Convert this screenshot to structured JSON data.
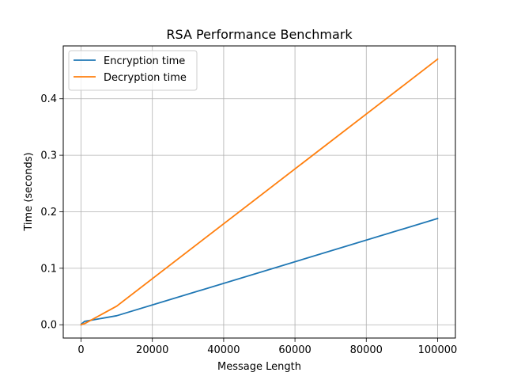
{
  "chart_data": {
    "type": "line",
    "title": "RSA Performance Benchmark",
    "xlabel": "Message Length",
    "ylabel": "Time (seconds)",
    "xlim": [
      -5000,
      105000
    ],
    "ylim": [
      -0.0235,
      0.4935
    ],
    "x_ticks": [
      0,
      20000,
      40000,
      60000,
      80000,
      100000
    ],
    "x_tick_labels": [
      "0",
      "20000",
      "40000",
      "60000",
      "80000",
      "100000"
    ],
    "y_ticks": [
      0.0,
      0.1,
      0.2,
      0.3,
      0.4
    ],
    "y_tick_labels": [
      "0.0",
      "0.1",
      "0.2",
      "0.3",
      "0.4"
    ],
    "grid": true,
    "legend_position": "top-left",
    "series": [
      {
        "name": "Encryption time",
        "color": "#1f77b4",
        "x": [
          10,
          100,
          1000,
          10000,
          100000
        ],
        "y": [
          0.0,
          0.0015,
          0.006,
          0.016,
          0.188
        ]
      },
      {
        "name": "Decryption time",
        "color": "#ff7f0e",
        "x": [
          10,
          100,
          1000,
          10000,
          100000
        ],
        "y": [
          0.0,
          0.0005,
          0.002,
          0.033,
          0.47
        ]
      }
    ]
  }
}
